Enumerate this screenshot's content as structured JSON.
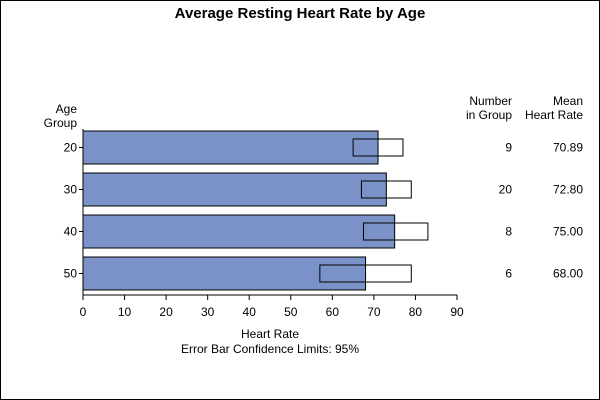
{
  "chart_data": {
    "type": "bar",
    "title": "Average Resting Heart Rate by Age",
    "ylabel_lines": [
      "Age",
      "Group"
    ],
    "xlabel": "Heart Rate",
    "footnote": "Error Bar Confidence Limits: 95%",
    "xlim": [
      0,
      90
    ],
    "xticks": [
      0,
      10,
      20,
      30,
      40,
      50,
      60,
      70,
      80,
      90
    ],
    "categories": [
      "20",
      "30",
      "40",
      "50"
    ],
    "values": [
      71,
      73,
      75,
      68
    ],
    "ci_lower": [
      65,
      67,
      67.5,
      57
    ],
    "ci_upper": [
      77,
      79,
      83,
      79
    ],
    "table_headers": {
      "count": [
        "Number",
        "in Group"
      ],
      "mean": [
        "Mean",
        "Heart Rate"
      ]
    },
    "counts": [
      "9",
      "20",
      "8",
      "6"
    ],
    "means": [
      "70.89",
      "72.80",
      "75.00",
      "68.00"
    ],
    "colors": {
      "bar_fill": "#7b92c8",
      "bar_stroke": "#000000",
      "ci_fill": "#ffffff"
    },
    "grid": false,
    "legend": "none"
  }
}
